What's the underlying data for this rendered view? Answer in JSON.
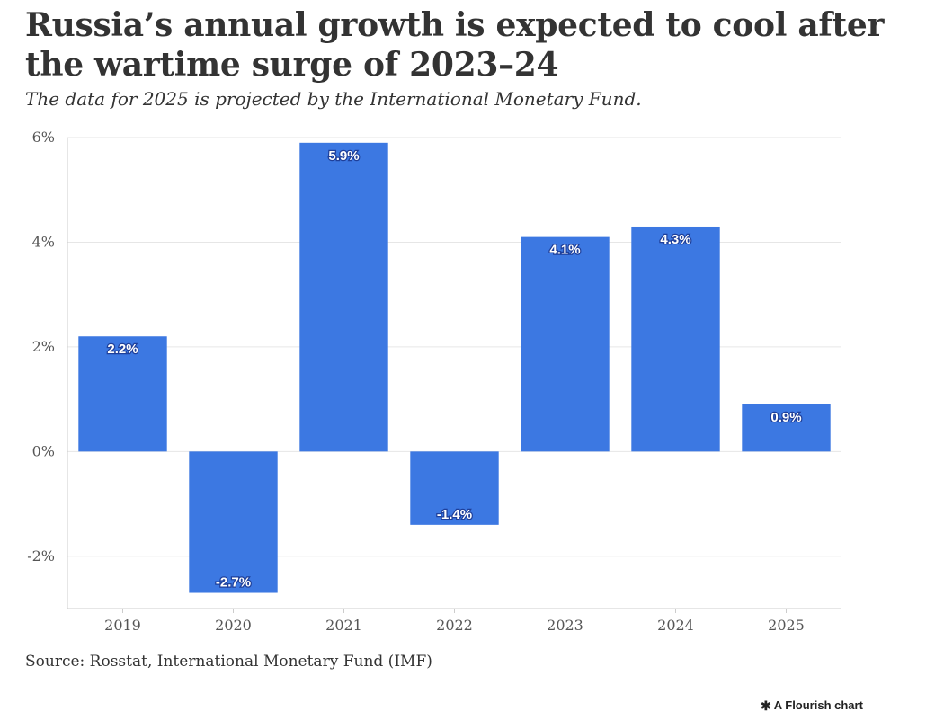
{
  "title": "Russia’s annual growth is expected to cool after the wartime surge of 2023–24",
  "subtitle": "The data for 2025 is projected by the International Monetary Fund.",
  "source": "Source: Rosstat, International Monetary Fund (IMF)",
  "credit": {
    "icon": "flourish-asterisk-icon",
    "label": "A Flourish chart"
  },
  "colors": {
    "bar": "#3c78e2",
    "grid": "#e6e6e6",
    "axis": "#cccccc",
    "text": "#333333"
  },
  "chart_data": {
    "type": "bar",
    "categories": [
      "2019",
      "2020",
      "2021",
      "2022",
      "2023",
      "2024",
      "2025"
    ],
    "values": [
      2.2,
      -2.7,
      5.9,
      -1.4,
      4.1,
      4.3,
      0.9
    ],
    "value_labels": [
      "2.2%",
      "-2.7%",
      "5.9%",
      "-1.4%",
      "4.1%",
      "4.3%",
      "0.9%"
    ],
    "yticks": [
      -2,
      0,
      2,
      4,
      6
    ],
    "ytick_labels": [
      "-2%",
      "0%",
      "2%",
      "4%",
      "6%"
    ],
    "ylim": [
      -3,
      6
    ],
    "grid": true,
    "xlabel": "",
    "ylabel": ""
  }
}
